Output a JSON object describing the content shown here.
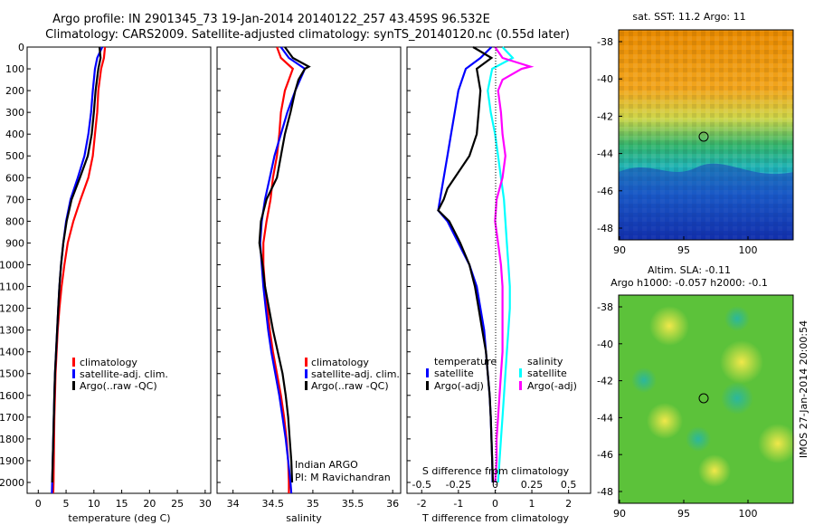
{
  "header": {
    "line1": "Argo profile: IN 2901345_73 19-Jan-2014 20140122_257 43.459S 96.532E",
    "line2": "Climatology: CARS2009. Satellite-adjusted climatology: synTS_20140120.nc (0.55d later)"
  },
  "colors": {
    "climatology": "#ff0000",
    "satellite": "#0000ff",
    "argo": "#000000",
    "cyan": "#00ffff",
    "magenta": "#ff00ff"
  },
  "depth_ticks": [
    "0",
    "100",
    "200",
    "300",
    "400",
    "500",
    "600",
    "700",
    "800",
    "900",
    "1000",
    "1100",
    "1200",
    "1300",
    "1400",
    "1500",
    "1600",
    "1700",
    "1800",
    "1900",
    "2000"
  ],
  "panels": {
    "temperature": {
      "xlabel": "temperature (deg C)",
      "xticks": [
        "0",
        "5",
        "10",
        "15",
        "20",
        "25",
        "30"
      ],
      "legend": [
        "climatology",
        "satellite-adj. clim.",
        "Argo(..raw -QC)"
      ]
    },
    "salinity": {
      "xlabel": "salinity",
      "xticks": [
        "34",
        "34.5",
        "35",
        "35.5",
        "36"
      ],
      "legend": [
        "climatology",
        "satellite-adj. clim.",
        "Argo(..raw -QC)"
      ],
      "note1": "Indian ARGO",
      "note2": "PI: M Ravichandran"
    },
    "difference": {
      "xlabel": "T difference from climatology",
      "top_label": "S difference from climatology",
      "xticks": [
        "-2",
        "-1",
        "0",
        "1",
        "2"
      ],
      "sticks": [
        "-0.5",
        "-0.25",
        "0",
        "0.25",
        "0.5"
      ],
      "legend_t_title": "temperature",
      "legend_s_title": "salinity",
      "legend_t": [
        "satellite",
        "Argo(-adj)"
      ],
      "legend_s": [
        "satellite",
        "Argo(-adj)"
      ]
    }
  },
  "maps": {
    "sst_title": "sat. SST: 11.2 Argo: 11",
    "sla_title1": "Altim. SLA: -0.11",
    "sla_title2": "Argo h1000: -0.057 h2000: -0.1",
    "yticks": [
      "-38",
      "-40",
      "-42",
      "-44",
      "-46",
      "-48"
    ],
    "xticks": [
      "90",
      "95",
      "100"
    ],
    "side_label": "IMOS 27-Jan-2014 20:00:54"
  },
  "chart_data": [
    {
      "type": "line",
      "name": "temperature",
      "xlim": [
        -2,
        31
      ],
      "ylim": [
        2050,
        0
      ],
      "series": [
        {
          "name": "climatology",
          "color": "#ff0000",
          "depth": [
            0,
            50,
            100,
            200,
            300,
            400,
            500,
            600,
            700,
            800,
            900,
            1000,
            1100,
            1200,
            1300,
            1400,
            1500,
            1600,
            1700,
            1800,
            1900,
            2000,
            2050
          ],
          "values": [
            12.0,
            11.8,
            11.3,
            10.8,
            10.6,
            10.2,
            9.8,
            9.0,
            7.6,
            6.3,
            5.3,
            4.7,
            4.2,
            3.8,
            3.5,
            3.3,
            3.1,
            3.0,
            2.9,
            2.85,
            2.8,
            2.75,
            2.7
          ]
        },
        {
          "name": "satellite-adj. clim.",
          "color": "#0000ff",
          "depth": [
            0,
            50,
            100,
            200,
            300,
            400,
            500,
            600,
            700,
            800,
            900,
            1000,
            1100,
            1200,
            1300,
            1400,
            1500,
            1600,
            1700,
            1800,
            1900,
            2000,
            2050
          ],
          "values": [
            11.5,
            10.6,
            10.2,
            9.8,
            9.5,
            9.0,
            8.3,
            7.1,
            5.8,
            5.0,
            4.5,
            4.1,
            3.8,
            3.6,
            3.4,
            3.2,
            3.0,
            2.9,
            2.8,
            2.7,
            2.6,
            2.5,
            2.45
          ]
        },
        {
          "name": "Argo(..raw -QC)",
          "color": "#000000",
          "depth": [
            0,
            50,
            100,
            200,
            300,
            400,
            500,
            600,
            700,
            800,
            900,
            1000,
            1100,
            1200,
            1300,
            1400,
            1500,
            1600,
            1700,
            1800,
            1900,
            2000
          ],
          "values": [
            11.0,
            11.2,
            10.8,
            10.3,
            10.0,
            9.6,
            8.9,
            7.5,
            6.0,
            5.1,
            4.5,
            4.1,
            3.8,
            3.6,
            3.4,
            3.2,
            3.0,
            2.9,
            2.8,
            2.7,
            2.6,
            2.5
          ]
        }
      ]
    },
    {
      "type": "line",
      "name": "salinity",
      "xlim": [
        33.8,
        36.1
      ],
      "ylim": [
        2050,
        0
      ],
      "series": [
        {
          "name": "climatology",
          "color": "#ff0000",
          "depth": [
            0,
            50,
            100,
            200,
            300,
            400,
            500,
            600,
            700,
            800,
            900,
            1000,
            1100,
            1200,
            1300,
            1400,
            1500,
            1600,
            1700,
            1800,
            1900,
            2000,
            2050
          ],
          "values": [
            34.55,
            34.6,
            34.75,
            34.65,
            34.6,
            34.58,
            34.55,
            34.5,
            34.47,
            34.42,
            34.38,
            34.38,
            34.4,
            34.43,
            34.46,
            34.5,
            34.55,
            34.6,
            34.64,
            34.67,
            34.69,
            34.7,
            34.7
          ]
        },
        {
          "name": "satellite-adj. clim.",
          "color": "#0000ff",
          "depth": [
            0,
            50,
            100,
            200,
            300,
            400,
            500,
            600,
            700,
            800,
            900,
            1000,
            1100,
            1200,
            1300,
            1400,
            1500,
            1600,
            1700,
            1800,
            1900,
            2000,
            2050
          ],
          "values": [
            34.6,
            34.7,
            34.9,
            34.78,
            34.68,
            34.6,
            34.52,
            34.46,
            34.4,
            34.36,
            34.34,
            34.36,
            34.38,
            34.41,
            34.44,
            34.48,
            34.53,
            34.58,
            34.62,
            34.66,
            34.69,
            34.72,
            34.73
          ]
        },
        {
          "name": "Argo(..raw -QC)",
          "color": "#000000",
          "depth": [
            0,
            50,
            90,
            100,
            150,
            200,
            300,
            400,
            500,
            600,
            700,
            800,
            900,
            1000,
            1100,
            1200,
            1300,
            1400,
            1500,
            1600,
            1700,
            1800,
            1900,
            2000
          ],
          "values": [
            34.65,
            34.75,
            34.95,
            34.9,
            34.82,
            34.78,
            34.72,
            34.65,
            34.6,
            34.55,
            34.42,
            34.35,
            34.33,
            34.37,
            34.4,
            34.45,
            34.5,
            34.56,
            34.62,
            34.66,
            34.69,
            34.71,
            34.73,
            34.74
          ]
        }
      ]
    },
    {
      "type": "line",
      "name": "difference",
      "xlim": [
        -2.4,
        2.6
      ],
      "ylim": [
        2050,
        0
      ],
      "series": [
        {
          "name": "temperature satellite",
          "color": "#0000ff",
          "depth": [
            0,
            50,
            100,
            200,
            300,
            400,
            500,
            600,
            700,
            750,
            800,
            900,
            1000,
            1100,
            1200,
            1300,
            1400,
            1500,
            1600,
            1700,
            1800,
            1900,
            2000
          ],
          "values": [
            -0.1,
            -0.4,
            -0.8,
            -1.0,
            -1.1,
            -1.2,
            -1.3,
            -1.4,
            -1.5,
            -1.55,
            -1.3,
            -1.0,
            -0.7,
            -0.5,
            -0.4,
            -0.3,
            -0.25,
            -0.2,
            -0.15,
            -0.12,
            -0.1,
            -0.08,
            -0.07
          ]
        },
        {
          "name": "temperature Argo(-adj)",
          "color": "#000000",
          "depth": [
            0,
            50,
            100,
            200,
            300,
            400,
            500,
            600,
            650,
            700,
            750,
            800,
            900,
            1000,
            1100,
            1200,
            1300,
            1400,
            1500,
            1600,
            1700,
            1800,
            1900,
            2000
          ],
          "values": [
            -0.6,
            -0.1,
            -0.5,
            -0.4,
            -0.45,
            -0.5,
            -0.7,
            -1.1,
            -1.3,
            -1.4,
            -1.55,
            -1.25,
            -0.95,
            -0.7,
            -0.55,
            -0.45,
            -0.35,
            -0.25,
            -0.2,
            -0.15,
            -0.12,
            -0.1,
            -0.08,
            -0.06
          ]
        },
        {
          "name": "salinity satellite",
          "color": "#00ffff",
          "depth": [
            0,
            50,
            100,
            200,
            300,
            400,
            500,
            600,
            700,
            800,
            900,
            1000,
            1100,
            1200,
            1300,
            1400,
            1500,
            1600,
            1700,
            1800,
            1900,
            2000
          ],
          "values": [
            0.05,
            0.12,
            -0.02,
            -0.05,
            -0.03,
            0.0,
            0.02,
            0.04,
            0.06,
            0.07,
            0.08,
            0.09,
            0.1,
            0.1,
            0.09,
            0.08,
            0.07,
            0.06,
            0.05,
            0.04,
            0.03,
            0.02
          ]
        },
        {
          "name": "salinity Argo(-adj)",
          "color": "#ff00ff",
          "depth": [
            0,
            50,
            90,
            100,
            150,
            200,
            300,
            400,
            500,
            600,
            700,
            800,
            900,
            1000,
            1100,
            1200,
            1300,
            1400,
            1500,
            1600,
            1700,
            1800,
            1900,
            2000
          ],
          "values": [
            0.0,
            0.05,
            0.24,
            0.18,
            0.05,
            0.02,
            0.04,
            0.05,
            0.07,
            0.05,
            0.01,
            0.0,
            0.02,
            0.04,
            0.05,
            0.05,
            0.05,
            0.05,
            0.04,
            0.03,
            0.02,
            0.01,
            0.01,
            0.0
          ]
        }
      ]
    }
  ]
}
